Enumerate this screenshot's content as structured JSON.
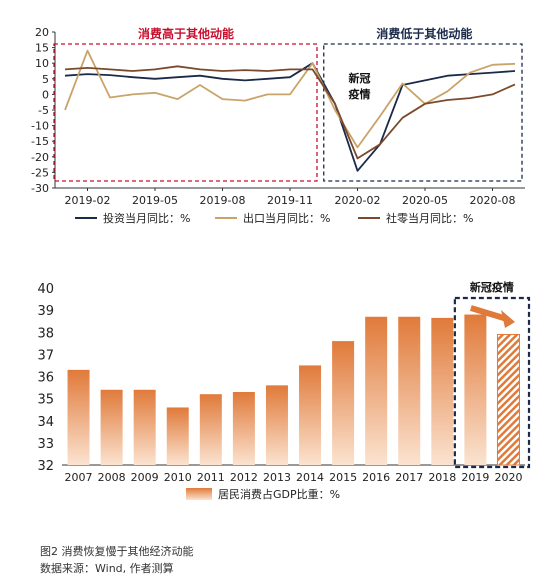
{
  "chart_data": [
    {
      "type": "line",
      "x": [
        "2019-01",
        "2019-02",
        "2019-03",
        "2019-04",
        "2019-05",
        "2019-06",
        "2019-07",
        "2019-08",
        "2019-09",
        "2019-10",
        "2019-11",
        "2019-12",
        "2020-01",
        "2020-02",
        "2020-03",
        "2020-04",
        "2020-05",
        "2020-06",
        "2020-07",
        "2020-08",
        "2020-09"
      ],
      "x_ticks": [
        "2019-02",
        "2019-05",
        "2019-08",
        "2019-11",
        "2020-02",
        "2020-05",
        "2020-08"
      ],
      "ylim": [
        -30,
        20
      ],
      "y_ticks": [
        20,
        15,
        10,
        5,
        0,
        -5,
        -10,
        -15,
        -20,
        -25,
        -30
      ],
      "series": [
        {
          "name": "投资当月同比：%",
          "color": "#1b2a4a",
          "values": [
            6,
            6.5,
            6.2,
            5.5,
            5,
            5.5,
            6,
            5,
            4.5,
            5,
            5.5,
            10,
            -3,
            -24.5,
            -16,
            3,
            4.5,
            6,
            6.5,
            7,
            7.5
          ]
        },
        {
          "name": "出口当月同比：%",
          "color": "#c9a46a",
          "values": [
            -5,
            14,
            -1,
            0,
            0.5,
            -1.5,
            3,
            -1.5,
            -2,
            0,
            0,
            10,
            -5,
            -17,
            -7,
            3.5,
            -3,
            1,
            7,
            9.5,
            9.8
          ]
        },
        {
          "name": "社零当月同比：%",
          "color": "#7b4a2d",
          "values": [
            8,
            8.5,
            8,
            7.5,
            8,
            9,
            8,
            7.5,
            7.8,
            7.5,
            8,
            8,
            -3,
            -20.5,
            -16,
            -7.5,
            -3,
            -1.8,
            -1.2,
            0,
            3.2
          ]
        }
      ],
      "annotations": [
        {
          "text": "消费高于其他动能",
          "color": "#c8102e"
        },
        {
          "text": "消费低于其他动能",
          "color": "#1b2a4a"
        },
        {
          "text": "新冠疫情",
          "color": "#000000"
        }
      ]
    },
    {
      "type": "bar",
      "categories": [
        "2007",
        "2008",
        "2009",
        "2010",
        "2011",
        "2012",
        "2013",
        "2014",
        "2015",
        "2016",
        "2017",
        "2018",
        "2019",
        "2020"
      ],
      "values": [
        36.3,
        35.4,
        35.4,
        34.6,
        35.2,
        35.3,
        35.6,
        36.5,
        37.6,
        38.7,
        38.7,
        38.65,
        38.8,
        37.9
      ],
      "ylim": [
        32,
        40
      ],
      "y_ticks": [
        40,
        39,
        38,
        37,
        36,
        35,
        34,
        33,
        32
      ],
      "legend": "居民消费占GDP比重：%",
      "annotation": "新冠疫情",
      "bar_color": "#e07a3a",
      "highlight_color": "#1b2a4a"
    }
  ],
  "caption": {
    "line1": "图2  消费恢复慢于其他经济动能",
    "line2": "数据来源：Wind, 作者测算"
  }
}
